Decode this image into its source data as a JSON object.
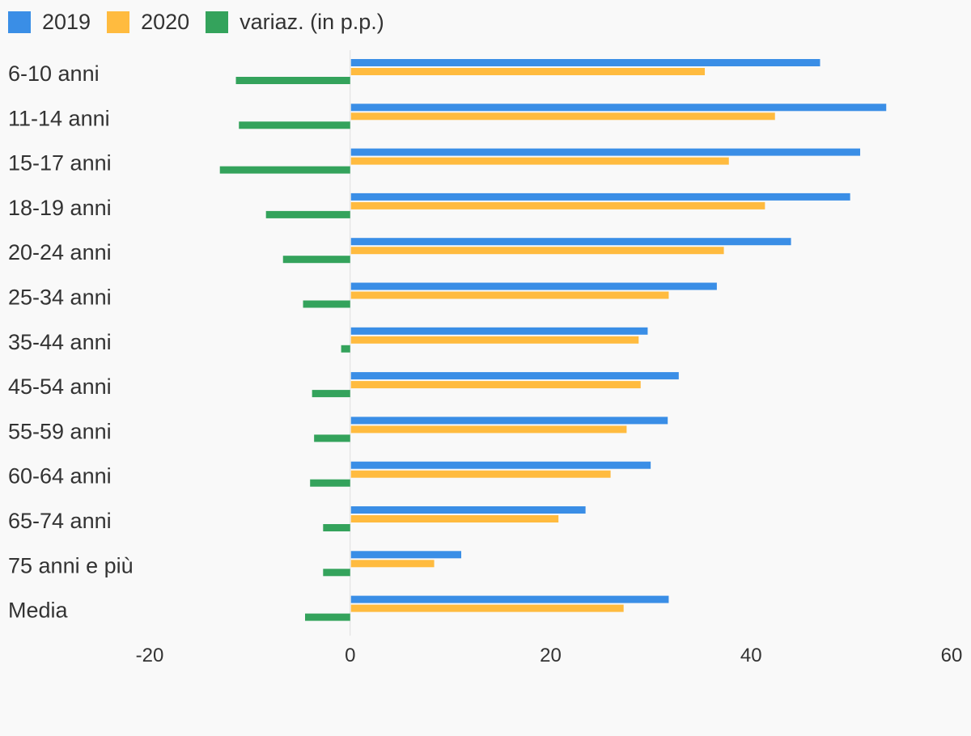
{
  "legend": [
    {
      "label": "2019",
      "color": "#3a8ee6"
    },
    {
      "label": "2020",
      "color": "#ffbb3f"
    },
    {
      "label": "variaz. (in p.p.)",
      "color": "#34a35c"
    }
  ],
  "chart_data": {
    "type": "bar",
    "orientation": "horizontal",
    "categories": [
      "6-10 anni",
      "11-14 anni",
      "15-17 anni",
      "18-19 anni",
      "20-24 anni",
      "25-34 anni",
      "35-44 anni",
      "45-54 anni",
      "55-59 anni",
      "60-64 anni",
      "65-74 anni",
      "75 anni e più",
      "Media"
    ],
    "series": [
      {
        "name": "2019",
        "color": "#3a8ee6",
        "values": [
          46.8,
          53.4,
          50.8,
          49.8,
          43.9,
          36.5,
          29.6,
          32.7,
          31.6,
          29.9,
          23.4,
          11.0,
          31.7
        ]
      },
      {
        "name": "2020",
        "color": "#ffbb3f",
        "values": [
          35.3,
          42.3,
          37.7,
          41.3,
          37.2,
          31.7,
          28.7,
          28.9,
          27.5,
          25.9,
          20.7,
          8.3,
          27.2
        ]
      },
      {
        "name": "variaz. (in p.p.)",
        "color": "#34a35c",
        "values": [
          -11.4,
          -11.1,
          -13.0,
          -8.4,
          -6.7,
          -4.7,
          -0.9,
          -3.8,
          -3.6,
          -4.0,
          -2.7,
          -2.7,
          -4.5
        ]
      }
    ],
    "xlim": [
      -20,
      60
    ],
    "xticks": [
      -20,
      0,
      20,
      40,
      60
    ],
    "xtick_labels": [
      "-20",
      "0",
      "20",
      "40",
      "60"
    ],
    "grid": false,
    "legend_position": "top-left",
    "title": "",
    "xlabel": "",
    "ylabel": ""
  }
}
